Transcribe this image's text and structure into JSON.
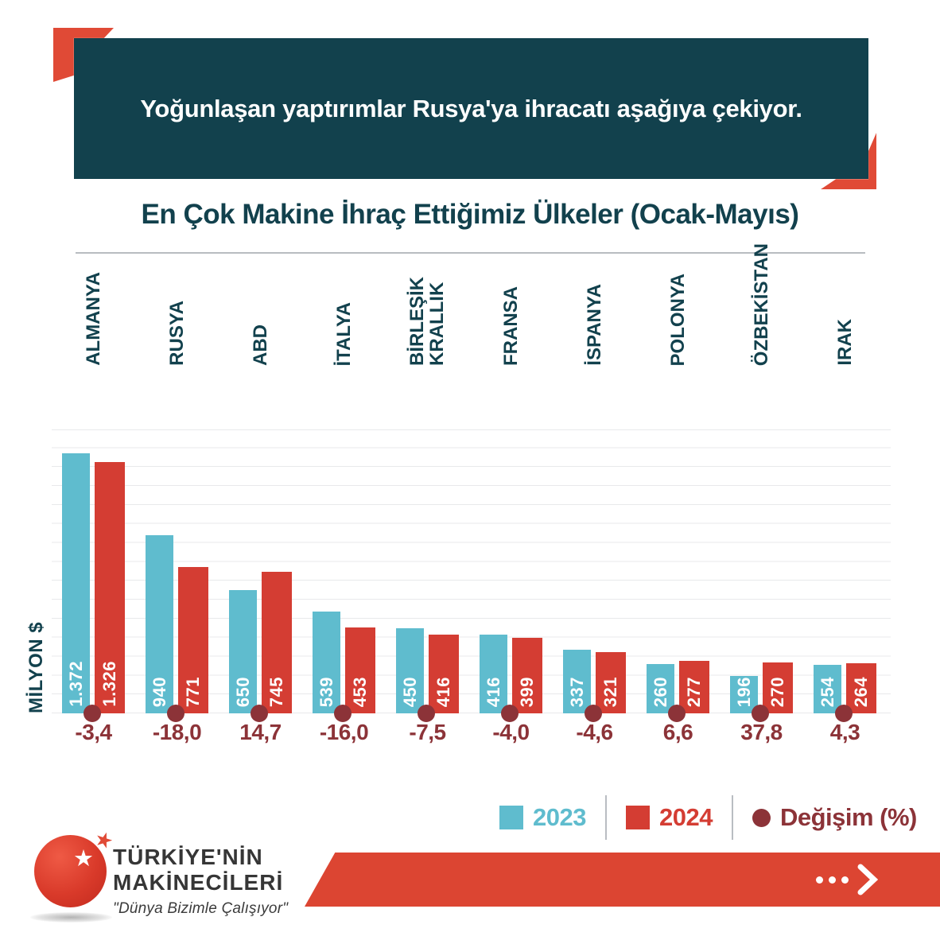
{
  "banner": {
    "title": "Yoğunlaşan yaptırımlar Rusya'ya ihracatı aşağıya çekiyor."
  },
  "chart_data": {
    "type": "bar",
    "title": "En Çok Makine İhraç Ettiğimiz Ülkeler (Ocak-Mayıs)",
    "ylabel": "MİLYON $",
    "categories": [
      "ALMANYA",
      "RUSYA",
      "ABD",
      "İTALYA",
      "BİRLEŞİK\nKRALLIK",
      "FRANSA",
      "İSPANYA",
      "POLONYA",
      "ÖZBEKİSTAN",
      "IRAK"
    ],
    "series": [
      {
        "name": "2023",
        "color": "#5FBCCE",
        "values": [
          1372,
          940,
          650,
          539,
          450,
          416,
          337,
          260,
          196,
          254
        ],
        "labels": [
          "1.372",
          "940",
          "650",
          "539",
          "450",
          "416",
          "337",
          "260",
          "196",
          "254"
        ]
      },
      {
        "name": "2024",
        "color": "#D43D33",
        "values": [
          1326,
          771,
          745,
          453,
          416,
          399,
          321,
          277,
          270,
          264
        ],
        "labels": [
          "1.326",
          "771",
          "745",
          "453",
          "416",
          "399",
          "321",
          "277",
          "270",
          "264"
        ]
      }
    ],
    "change_pct": {
      "name": "Değişim (%)",
      "color": "#8C3338",
      "values": [
        -3.4,
        -18.0,
        14.7,
        -16.0,
        -7.5,
        -4.0,
        -4.6,
        6.6,
        37.8,
        4.3
      ],
      "labels": [
        "-3,4",
        "-18,0",
        "14,7",
        "-16,0",
        "-7,5",
        "-4,0",
        "-4,6",
        "6,6",
        "37,8",
        "4,3"
      ]
    },
    "ylim": [
      0,
      1500
    ],
    "grid": true,
    "legend_position": "bottom-right"
  },
  "legend": {
    "items": [
      {
        "label": "2023",
        "color": "#5FBCCE",
        "marker": "square"
      },
      {
        "label": "2024",
        "color": "#D43D33",
        "marker": "square"
      },
      {
        "label": "Değişim (%)",
        "color": "#8C3338",
        "marker": "circle"
      }
    ]
  },
  "footer": {
    "brand_line1": "TÜRKİYE'NİN",
    "brand_line2": "MAKİNECİLERİ",
    "tagline": "\"Dünya Bizimle Çalışıyor\"",
    "star": "★"
  },
  "colors": {
    "banner_bg": "#12414D",
    "accent_red": "#E04A36",
    "bar_teal": "#5FBCCE",
    "bar_red": "#D43D33",
    "dark_red": "#8C3338",
    "teal_text": "#12414D",
    "grid": "#E8E9EB",
    "ribbon_red": "#DC4532"
  }
}
